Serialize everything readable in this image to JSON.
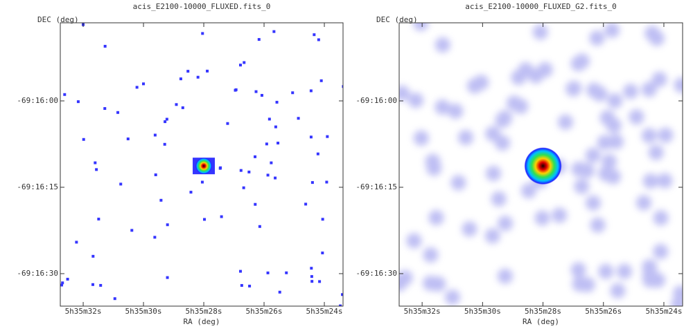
{
  "chart_data": [
    {
      "type": "image",
      "title": "acis_E2100-10000_FLUXED.fits_0",
      "xlabel": "RA (deg)",
      "ylabel": "DEC (deg)",
      "xlim": [
        32.76,
        23.38
      ],
      "ylim": [
        35.64,
        -13.56
      ],
      "xticks": [
        {
          "value": 32,
          "label": "5h35m32s"
        },
        {
          "value": 30,
          "label": "5h35m30s"
        },
        {
          "value": 28,
          "label": "5h35m28s"
        },
        {
          "value": 26,
          "label": "5h35m26s"
        },
        {
          "value": 24,
          "label": "5h35m24s"
        }
      ],
      "yticks": [
        {
          "value": 0,
          "label": "-69:16:00"
        },
        {
          "value": 15,
          "label": "-69:16:15"
        },
        {
          "value": 30,
          "label": "-69:16:30"
        }
      ]
    },
    {
      "type": "image",
      "title": "acis_E2100-10000_FLUXED_G2.fits_0",
      "xlabel": "RA (deg)",
      "ylabel": "DEC (deg)",
      "xlim": [
        32.76,
        23.38
      ],
      "ylim": [
        35.64,
        -13.56
      ],
      "xticks": [
        {
          "value": 32,
          "label": "5h35m32s"
        },
        {
          "value": 30,
          "label": "5h35m30s"
        },
        {
          "value": 28,
          "label": "5h35m28s"
        },
        {
          "value": 26,
          "label": "5h35m26s"
        },
        {
          "value": 24,
          "label": "5h35m24s"
        }
      ],
      "yticks": [
        {
          "value": 0,
          "label": "-69:16:00"
        },
        {
          "value": 15,
          "label": "-69:16:15"
        },
        {
          "value": 30,
          "label": "-69:16:30"
        }
      ]
    }
  ]
}
